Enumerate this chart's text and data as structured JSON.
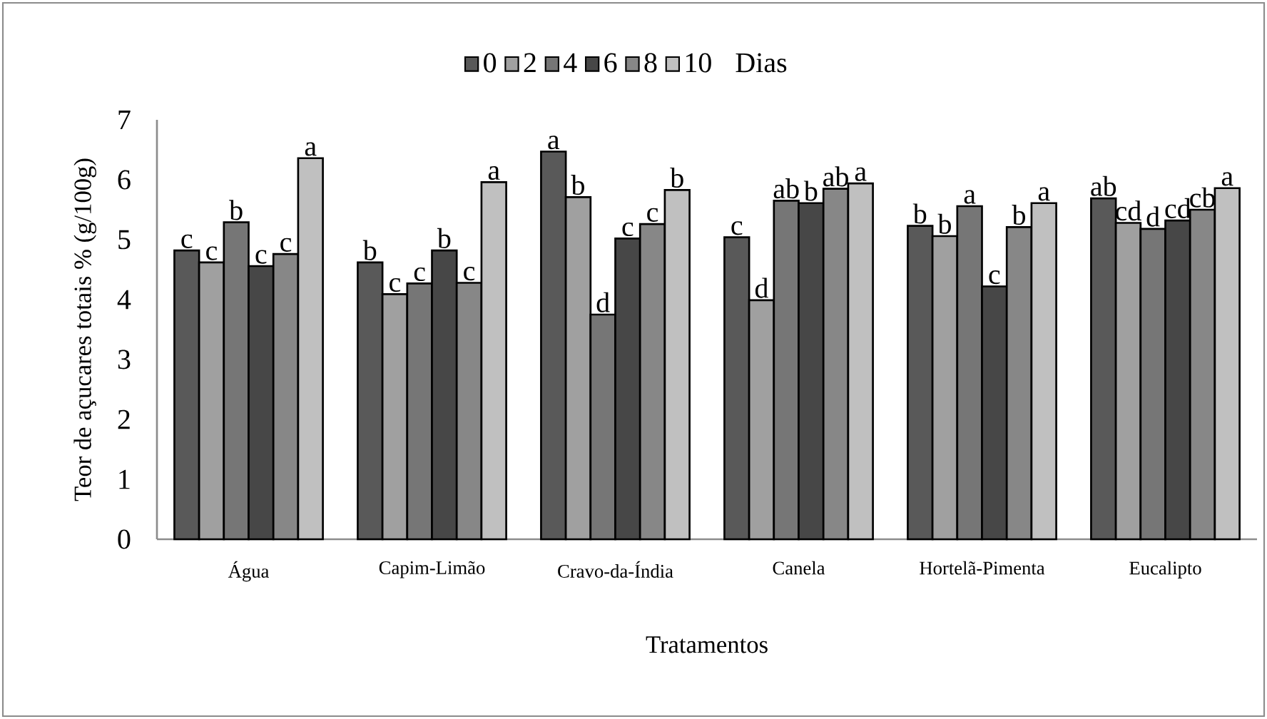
{
  "chart_data": {
    "type": "bar",
    "ylabel": "Teor de açucares totais % (g/100g)",
    "xlabel": "Tratamentos",
    "legend_title": "Dias",
    "legend": "top",
    "categories": [
      "Água",
      "Capim-Limão",
      "Cravo-da-Índia",
      "Canela",
      "Hortelã-Pimenta",
      "Eucalipto"
    ],
    "ylim": [
      0,
      7
    ],
    "yticks": [
      0,
      1,
      2,
      3,
      4,
      5,
      6,
      7
    ],
    "grid": false,
    "series": [
      {
        "name": "0",
        "color": "#595959",
        "values": [
          4.82,
          4.62,
          6.47,
          5.04,
          5.23,
          5.69
        ],
        "value_labels": [
          "c",
          "b",
          "a",
          "c",
          "b",
          "ab"
        ]
      },
      {
        "name": "2",
        "color": "#a0a0a0",
        "values": [
          4.62,
          4.09,
          5.71,
          3.99,
          5.06,
          5.28
        ],
        "value_labels": [
          "c",
          "c",
          "b",
          "d",
          "b",
          "cd"
        ]
      },
      {
        "name": "4",
        "color": "#767676",
        "values": [
          5.29,
          4.27,
          3.75,
          5.65,
          5.56,
          5.18
        ],
        "value_labels": [
          "b",
          "c",
          "d",
          "ab",
          "a",
          "d"
        ]
      },
      {
        "name": "6",
        "color": "#474747",
        "values": [
          4.56,
          4.82,
          5.02,
          5.61,
          4.22,
          5.32
        ],
        "value_labels": [
          "c",
          "b",
          "c",
          "b",
          "c",
          "cd"
        ]
      },
      {
        "name": "8",
        "color": "#878787",
        "values": [
          4.76,
          4.28,
          5.26,
          5.85,
          5.21,
          5.5
        ],
        "value_labels": [
          "c",
          "c",
          "c",
          "ab",
          "b",
          "cb"
        ]
      },
      {
        "name": "10",
        "color": "#c0c0c0",
        "values": [
          6.36,
          5.96,
          5.83,
          5.94,
          5.61,
          5.86
        ],
        "value_labels": [
          "a",
          "a",
          "b",
          "a",
          "a",
          "a"
        ]
      }
    ]
  }
}
